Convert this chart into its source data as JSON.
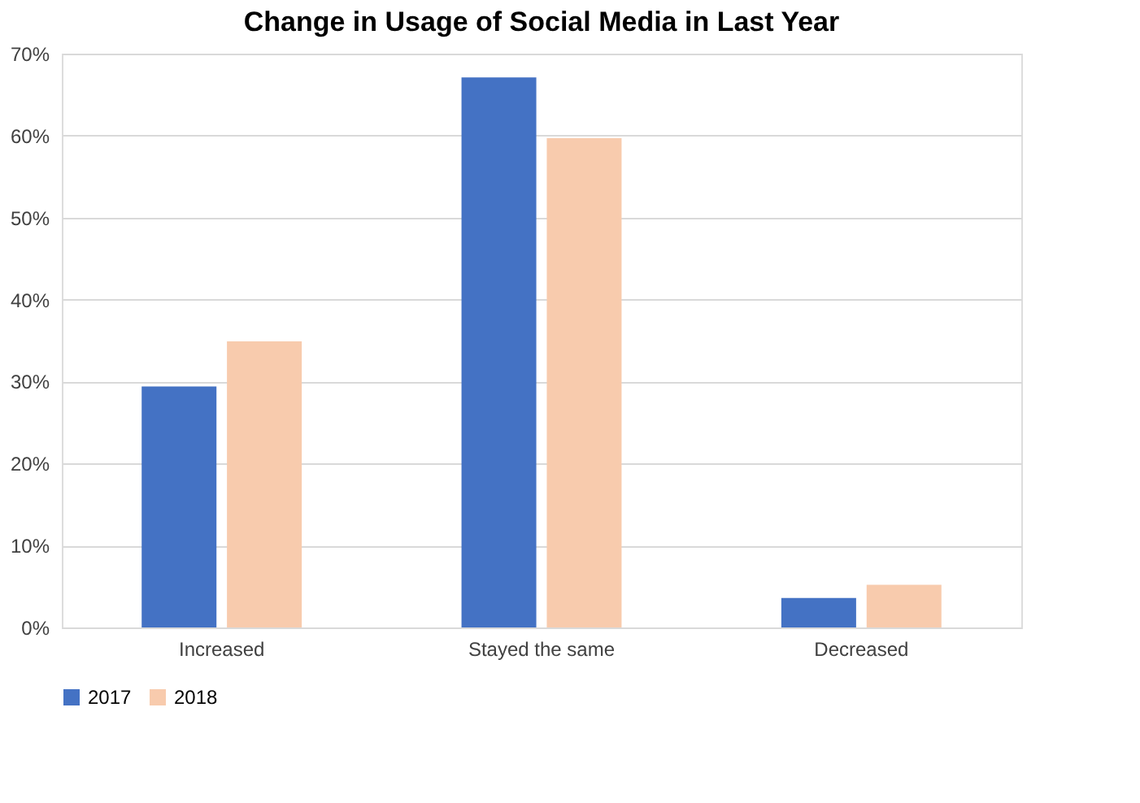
{
  "chart_data": {
    "type": "bar",
    "title": "Change in Usage of Social Media in Last Year",
    "categories": [
      "Increased",
      "Stayed the same",
      "Decreased"
    ],
    "series": [
      {
        "name": "2017",
        "color": "#4472c4",
        "values": [
          29.4,
          67.1,
          3.6
        ]
      },
      {
        "name": "2018",
        "color": "#f8cbad",
        "values": [
          34.9,
          59.7,
          5.2
        ]
      }
    ],
    "ylim": [
      0,
      70
    ],
    "yticks": [
      {
        "value": 0,
        "label": "0%"
      },
      {
        "value": 10,
        "label": "10%"
      },
      {
        "value": 20,
        "label": "20%"
      },
      {
        "value": 30,
        "label": "30%"
      },
      {
        "value": 40,
        "label": "40%"
      },
      {
        "value": 50,
        "label": "50%"
      },
      {
        "value": 60,
        "label": "60%"
      },
      {
        "value": 70,
        "label": "70%"
      }
    ],
    "grid": "y",
    "legend": "bottom"
  }
}
